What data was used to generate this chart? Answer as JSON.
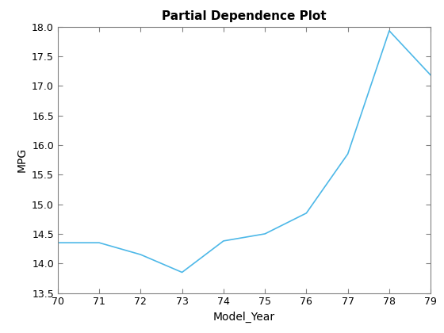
{
  "x": [
    70,
    71,
    72,
    73,
    74,
    75,
    76,
    77,
    78,
    79
  ],
  "y": [
    14.35,
    14.35,
    14.15,
    13.85,
    14.38,
    14.5,
    14.85,
    15.85,
    17.93,
    17.18
  ],
  "line_color": "#4db8e8",
  "title": "Partial Dependence Plot",
  "xlabel": "Model_Year",
  "ylabel": "MPG",
  "xlim": [
    70,
    79
  ],
  "ylim": [
    13.5,
    18
  ],
  "xticks": [
    70,
    71,
    72,
    73,
    74,
    75,
    76,
    77,
    78,
    79
  ],
  "yticks": [
    13.5,
    14,
    14.5,
    15,
    15.5,
    16,
    16.5,
    17,
    17.5,
    18
  ],
  "title_fontsize": 11,
  "label_fontsize": 10
}
